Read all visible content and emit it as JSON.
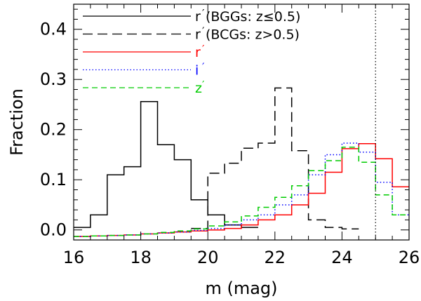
{
  "chart_data": {
    "type": "step-histogram",
    "title": "",
    "xlabel": "m (mag)",
    "ylabel": "Fraction",
    "xlim": [
      16,
      26
    ],
    "ylim": [
      -0.02,
      0.45
    ],
    "xticks": [
      16,
      18,
      20,
      22,
      24,
      26
    ],
    "xtick_labels": [
      "16",
      "18",
      "20",
      "22",
      "24",
      "26"
    ],
    "yticks": [
      0.0,
      0.1,
      0.2,
      0.3,
      0.4
    ],
    "ytick_labels": [
      "0.0",
      "0.1",
      "0.2",
      "0.3",
      "0.4"
    ],
    "reference_line_x": 25,
    "series": [
      {
        "name": "r' (BGGs: z≤0.5)",
        "legend_prefix": "r",
        "legend_detail": "(BGGs: z≤0.5)",
        "color": "#000000",
        "dash": "solid",
        "edges": [
          16,
          16.5,
          17,
          17.5,
          18,
          18.5,
          19,
          19.5,
          20,
          20.5,
          21,
          21.5
        ],
        "values": [
          0.005,
          0.03,
          0.11,
          0.126,
          0.256,
          0.17,
          0.14,
          0.06,
          0.03,
          0.01,
          0.005
        ]
      },
      {
        "name": "r' (BCGs: z>0.5)",
        "legend_prefix": "r",
        "legend_detail": "(BCGs: z>0.5)",
        "color": "#000000",
        "dash": "long-dash",
        "edges": [
          19.5,
          20,
          20.5,
          21,
          21.5,
          22,
          22.5,
          23,
          23.5,
          24,
          24.5
        ],
        "values": [
          0.003,
          0.113,
          0.133,
          0.163,
          0.173,
          0.283,
          0.158,
          0.02,
          0.005,
          0.002
        ]
      },
      {
        "name": "r'",
        "legend_prefix": "r",
        "legend_detail": "",
        "color": "#ff0000",
        "dash": "solid",
        "edges": [
          16,
          16.5,
          17,
          17.5,
          18,
          18.5,
          19,
          19.5,
          20,
          20.5,
          21,
          21.5,
          22,
          22.5,
          23,
          23.5,
          24,
          24.5,
          25,
          25.5,
          26
        ],
        "values": [
          -0.013,
          -0.012,
          -0.011,
          -0.01,
          -0.008,
          -0.006,
          -0.004,
          -0.002,
          0.0,
          0.003,
          0.01,
          0.02,
          0.03,
          0.05,
          0.073,
          0.115,
          0.162,
          0.172,
          0.142,
          0.086
        ]
      },
      {
        "name": "i'",
        "legend_prefix": "i",
        "legend_detail": "",
        "color": "#0000ff",
        "dash": "dotted",
        "edges": [
          16,
          16.5,
          17,
          17.5,
          18,
          18.5,
          19,
          19.5,
          20,
          20.5,
          21,
          21.5,
          22,
          22.5,
          23,
          23.5,
          24,
          24.5,
          25,
          25.5,
          26
        ],
        "values": [
          -0.013,
          -0.012,
          -0.011,
          -0.01,
          -0.008,
          -0.006,
          -0.004,
          -0.001,
          0.003,
          0.01,
          0.02,
          0.03,
          0.05,
          0.07,
          0.11,
          0.15,
          0.173,
          0.155,
          0.095,
          0.03
        ]
      },
      {
        "name": "z'",
        "legend_prefix": "z",
        "legend_detail": "",
        "color": "#00cc00",
        "dash": "dashed",
        "edges": [
          16,
          16.5,
          17,
          17.5,
          18,
          18.5,
          19,
          19.5,
          20,
          20.5,
          21,
          21.5,
          22,
          22.5,
          23,
          23.5,
          24,
          24.5,
          25,
          25.5,
          26
        ],
        "values": [
          -0.013,
          -0.012,
          -0.011,
          -0.01,
          -0.008,
          -0.005,
          -0.002,
          0.002,
          0.008,
          0.016,
          0.028,
          0.045,
          0.065,
          0.088,
          0.118,
          0.138,
          0.165,
          0.135,
          0.07,
          0.03
        ]
      }
    ]
  }
}
